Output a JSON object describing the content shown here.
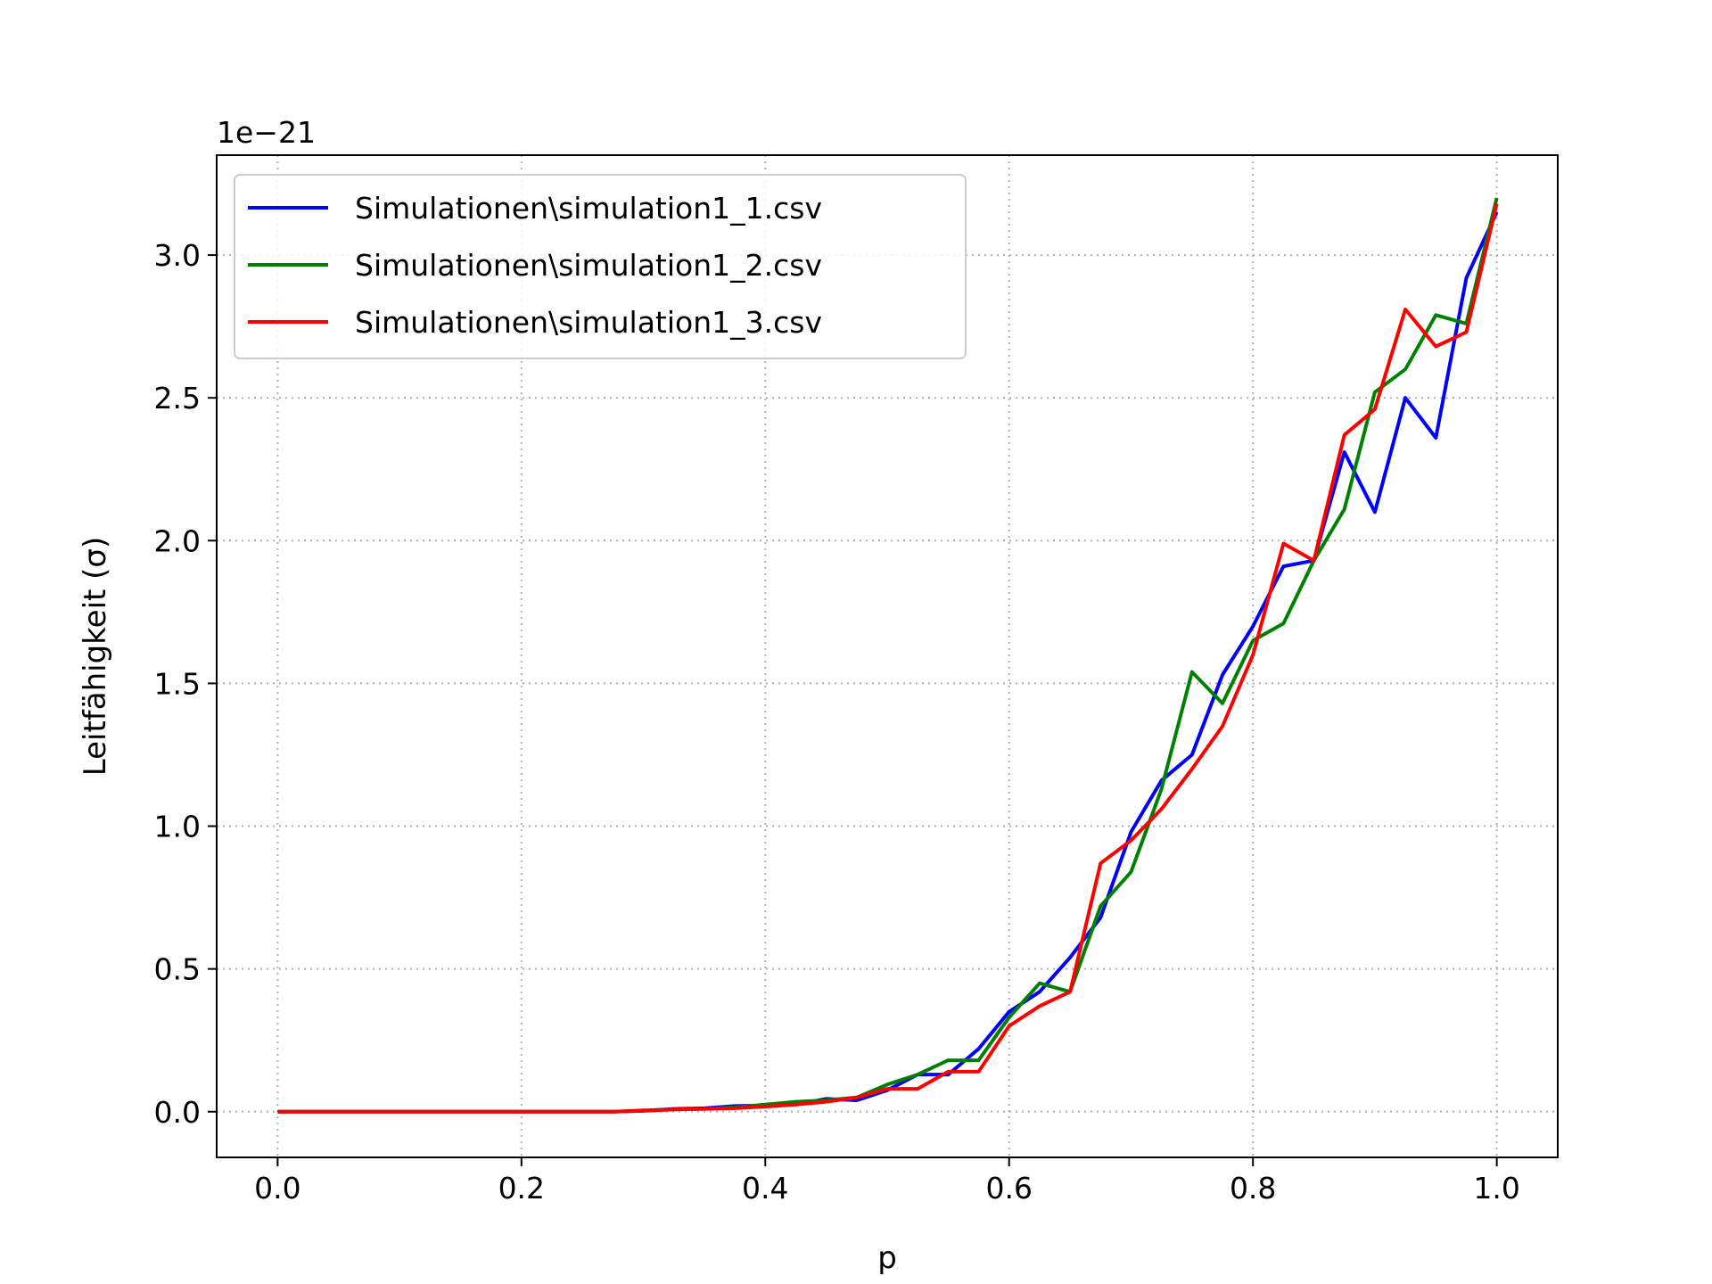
{
  "chart_data": {
    "type": "line",
    "title": "",
    "xlabel": "p",
    "ylabel": "Leitfähigkeit (σ)",
    "y_offset_label": "1e−21",
    "xlim": [
      -0.05,
      1.05
    ],
    "ylim": [
      -0.16,
      3.35
    ],
    "x_ticks": [
      0.0,
      0.2,
      0.4,
      0.6,
      0.8,
      1.0
    ],
    "x_tick_labels": [
      "0.0",
      "0.2",
      "0.4",
      "0.6",
      "0.8",
      "1.0"
    ],
    "y_ticks": [
      0.0,
      0.5,
      1.0,
      1.5,
      2.0,
      2.5,
      3.0
    ],
    "y_tick_labels": [
      "0.0",
      "0.5",
      "1.0",
      "1.5",
      "2.0",
      "2.5",
      "3.0"
    ],
    "grid": true,
    "legend_position": "top-left",
    "x": [
      0.0,
      0.025,
      0.05,
      0.075,
      0.1,
      0.125,
      0.15,
      0.175,
      0.2,
      0.225,
      0.25,
      0.275,
      0.3,
      0.325,
      0.35,
      0.375,
      0.4,
      0.425,
      0.45,
      0.475,
      0.5,
      0.525,
      0.55,
      0.575,
      0.6,
      0.625,
      0.65,
      0.675,
      0.7,
      0.725,
      0.75,
      0.775,
      0.8,
      0.825,
      0.85,
      0.875,
      0.9,
      0.925,
      0.95,
      0.975,
      1.0
    ],
    "series": [
      {
        "name": "Simulationen\\simulation1_1.csv",
        "color": "#0000ff",
        "values": [
          0.0,
          0.0,
          0.0,
          0.0,
          0.0,
          0.0,
          0.0,
          0.0,
          0.0,
          0.0,
          0.0,
          0.0,
          0.003,
          0.01,
          0.012,
          0.02,
          0.022,
          0.025,
          0.045,
          0.04,
          0.075,
          0.13,
          0.13,
          0.22,
          0.35,
          0.42,
          0.54,
          0.68,
          0.98,
          1.16,
          1.25,
          1.53,
          1.7,
          1.91,
          1.93,
          2.31,
          2.1,
          2.5,
          2.36,
          2.92,
          3.15
        ]
      },
      {
        "name": "Simulationen\\simulation1_2.csv",
        "color": "#008000",
        "values": [
          0.0,
          0.0,
          0.0,
          0.0,
          0.0,
          0.0,
          0.0,
          0.0,
          0.0,
          0.0,
          0.0,
          0.0,
          0.005,
          0.008,
          0.01,
          0.015,
          0.025,
          0.035,
          0.04,
          0.05,
          0.095,
          0.13,
          0.18,
          0.18,
          0.33,
          0.45,
          0.42,
          0.72,
          0.84,
          1.13,
          1.54,
          1.43,
          1.65,
          1.71,
          1.93,
          2.11,
          2.52,
          2.6,
          2.79,
          2.76,
          3.2
        ]
      },
      {
        "name": "Simulationen\\simulation1_3.csv",
        "color": "#ff0000",
        "values": [
          0.0,
          0.0,
          0.0,
          0.0,
          0.0,
          0.0,
          0.0,
          0.0,
          0.0,
          0.0,
          0.0,
          0.0,
          0.003,
          0.008,
          0.01,
          0.012,
          0.018,
          0.025,
          0.035,
          0.05,
          0.08,
          0.08,
          0.14,
          0.14,
          0.3,
          0.37,
          0.42,
          0.87,
          0.95,
          1.06,
          1.2,
          1.35,
          1.6,
          1.99,
          1.93,
          2.37,
          2.46,
          2.81,
          2.68,
          2.73,
          3.18
        ]
      }
    ]
  }
}
